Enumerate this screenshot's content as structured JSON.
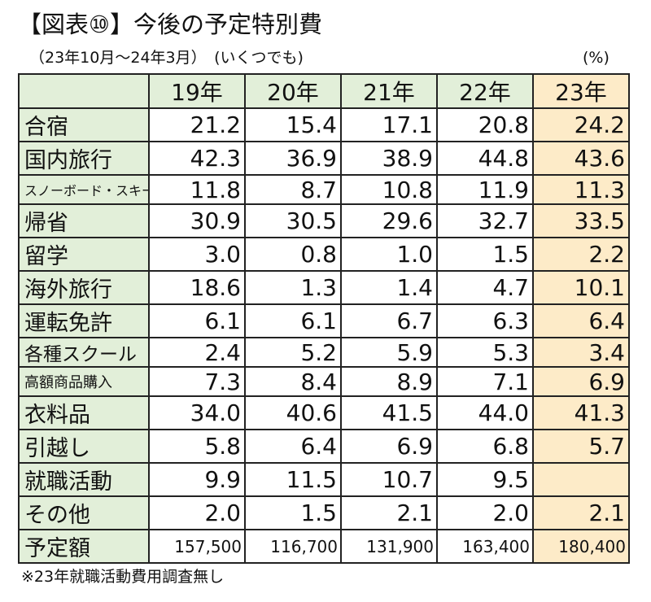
{
  "title": "【図表⑩】今後の予定特別費",
  "subtitle": "（23年10月～24年3月）　(いくつでも)",
  "unit": "(%)",
  "note": "※23年就職活動費用調査無し",
  "colors": {
    "label_bg": "#e2efd9",
    "highlight_bg": "#fdebc8",
    "border": "#222222"
  },
  "chart_data": {
    "type": "table",
    "columns": [
      "19年",
      "20年",
      "21年",
      "22年",
      "23年"
    ],
    "highlight_column": "23年",
    "rows": [
      {
        "label": "合宿",
        "values": [
          "21.2",
          "15.4",
          "17.1",
          "20.8",
          "24.2"
        ]
      },
      {
        "label": "国内旅行",
        "values": [
          "42.3",
          "36.9",
          "38.9",
          "44.8",
          "43.6"
        ]
      },
      {
        "label": "スノーボード・スキー",
        "values": [
          "11.8",
          "8.7",
          "10.8",
          "11.9",
          "11.3"
        ]
      },
      {
        "label": "帰省",
        "values": [
          "30.9",
          "30.5",
          "29.6",
          "32.7",
          "33.5"
        ]
      },
      {
        "label": "留学",
        "values": [
          "3.0",
          "0.8",
          "1.0",
          "1.5",
          "2.2"
        ]
      },
      {
        "label": "海外旅行",
        "values": [
          "18.6",
          "1.3",
          "1.4",
          "4.7",
          "10.1"
        ]
      },
      {
        "label": "運転免許",
        "values": [
          "6.1",
          "6.1",
          "6.7",
          "6.3",
          "6.4"
        ]
      },
      {
        "label": "各種スクール",
        "values": [
          "2.4",
          "5.2",
          "5.9",
          "5.3",
          "3.4"
        ]
      },
      {
        "label": "高額商品購入",
        "values": [
          "7.3",
          "8.4",
          "8.9",
          "7.1",
          "6.9"
        ]
      },
      {
        "label": "衣料品",
        "values": [
          "34.0",
          "40.6",
          "41.5",
          "44.0",
          "41.3"
        ]
      },
      {
        "label": "引越し",
        "values": [
          "5.8",
          "6.4",
          "6.9",
          "6.8",
          "5.7"
        ]
      },
      {
        "label": "就職活動",
        "values": [
          "9.9",
          "11.5",
          "10.7",
          "9.5",
          ""
        ]
      },
      {
        "label": "その他",
        "values": [
          "2.0",
          "1.5",
          "2.1",
          "2.0",
          "2.1"
        ]
      },
      {
        "label": "予定額",
        "values": [
          "157,500",
          "116,700",
          "131,900",
          "163,400",
          "180,400"
        ]
      }
    ]
  }
}
